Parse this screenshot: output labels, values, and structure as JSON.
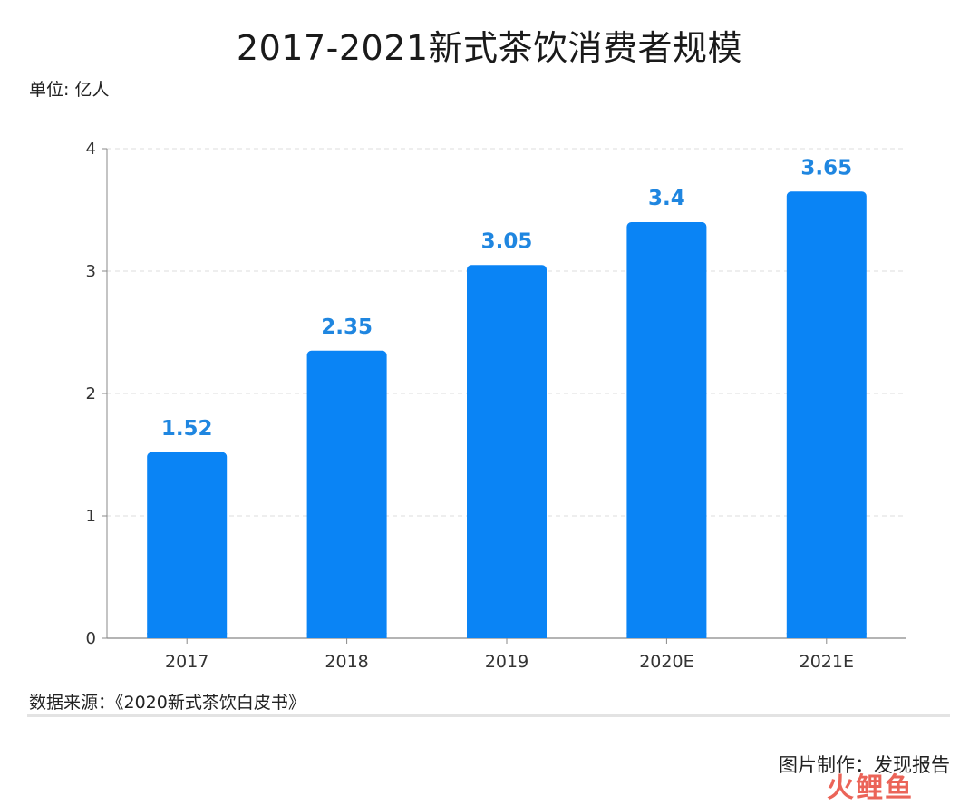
{
  "chart_data": {
    "type": "bar",
    "title": "2017-2021新式茶饮消费者规模",
    "unit_label": "单位: 亿人",
    "categories": [
      "2017",
      "2018",
      "2019",
      "2020E",
      "2021E"
    ],
    "values": [
      1.52,
      2.35,
      3.05,
      3.4,
      3.65
    ],
    "data_labels": [
      "1.52",
      "2.35",
      "3.05",
      "3.4",
      "3.65"
    ],
    "ylim": [
      0,
      4
    ],
    "yticks": [
      0,
      1,
      2,
      3,
      4
    ],
    "grid": true,
    "bar_color": "#0a84f5",
    "label_color": "#1f86e0"
  },
  "footer": {
    "source": "数据来源：《2020新式茶饮白皮书》",
    "credit": "图片制作：发现报告",
    "watermark": "火鲤鱼"
  }
}
